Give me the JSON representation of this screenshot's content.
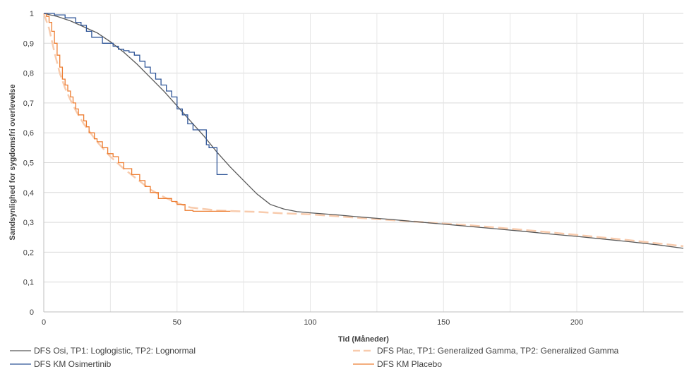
{
  "chart_data": {
    "type": "line",
    "xlabel": "Tid (Måneder)",
    "ylabel": "Sandsynlighed for sygdomsfri overlevelse",
    "xlim": [
      0,
      240
    ],
    "ylim": [
      0,
      1
    ],
    "x_ticks": [
      "0",
      "50",
      "100",
      "150",
      "200"
    ],
    "y_ticks": [
      "0",
      "0,1",
      "0,2",
      "0,3",
      "0,4",
      "0,5",
      "0,6",
      "0,7",
      "0,8",
      "0,9",
      "1"
    ],
    "grid": "vertical and horizontal",
    "legend_position": "bottom",
    "series": [
      {
        "name": "DFS Osi, TP1: Loglogistic, TP2: Lognormal",
        "style": "solid",
        "color": "#595959",
        "points": [
          [
            0,
            1
          ],
          [
            5,
            0.99
          ],
          [
            10,
            0.975
          ],
          [
            15,
            0.955
          ],
          [
            20,
            0.935
          ],
          [
            25,
            0.905
          ],
          [
            30,
            0.87
          ],
          [
            35,
            0.83
          ],
          [
            40,
            0.785
          ],
          [
            45,
            0.74
          ],
          [
            50,
            0.69
          ],
          [
            55,
            0.64
          ],
          [
            60,
            0.59
          ],
          [
            65,
            0.535
          ],
          [
            70,
            0.485
          ],
          [
            75,
            0.44
          ],
          [
            80,
            0.395
          ],
          [
            85,
            0.36
          ],
          [
            90,
            0.345
          ],
          [
            95,
            0.336
          ],
          [
            100,
            0.332
          ],
          [
            110,
            0.325
          ],
          [
            120,
            0.317
          ],
          [
            130,
            0.31
          ],
          [
            140,
            0.302
          ],
          [
            150,
            0.294
          ],
          [
            160,
            0.286
          ],
          [
            170,
            0.278
          ],
          [
            180,
            0.27
          ],
          [
            190,
            0.261
          ],
          [
            200,
            0.253
          ],
          [
            210,
            0.244
          ],
          [
            220,
            0.235
          ],
          [
            230,
            0.225
          ],
          [
            240,
            0.213
          ]
        ]
      },
      {
        "name": "DFS Plac, TP1: Generalized Gamma, TP2: Generalized Gamma",
        "style": "dashed",
        "color": "#f8cbad",
        "points": [
          [
            0,
            1
          ],
          [
            2,
            0.95
          ],
          [
            4,
            0.87
          ],
          [
            6,
            0.8
          ],
          [
            8,
            0.75
          ],
          [
            10,
            0.71
          ],
          [
            12,
            0.675
          ],
          [
            15,
            0.63
          ],
          [
            20,
            0.57
          ],
          [
            25,
            0.52
          ],
          [
            30,
            0.48
          ],
          [
            35,
            0.445
          ],
          [
            40,
            0.41
          ],
          [
            45,
            0.385
          ],
          [
            50,
            0.365
          ],
          [
            55,
            0.35
          ],
          [
            60,
            0.345
          ],
          [
            65,
            0.34
          ],
          [
            70,
            0.338
          ],
          [
            80,
            0.335
          ],
          [
            90,
            0.33
          ],
          [
            100,
            0.327
          ],
          [
            120,
            0.314
          ],
          [
            140,
            0.302
          ],
          [
            160,
            0.29
          ],
          [
            180,
            0.275
          ],
          [
            200,
            0.258
          ],
          [
            220,
            0.24
          ],
          [
            240,
            0.22
          ]
        ]
      },
      {
        "name": "DFS KM Osimertinib",
        "style": "step",
        "color": "#2f5597",
        "points": [
          [
            0,
            1
          ],
          [
            4,
            1
          ],
          [
            4,
            0.995
          ],
          [
            8,
            0.995
          ],
          [
            8,
            0.985
          ],
          [
            12,
            0.985
          ],
          [
            12,
            0.97
          ],
          [
            14,
            0.97
          ],
          [
            14,
            0.96
          ],
          [
            16,
            0.96
          ],
          [
            16,
            0.94
          ],
          [
            18,
            0.94
          ],
          [
            18,
            0.92
          ],
          [
            22,
            0.92
          ],
          [
            22,
            0.9
          ],
          [
            26,
            0.9
          ],
          [
            26,
            0.89
          ],
          [
            28,
            0.89
          ],
          [
            28,
            0.88
          ],
          [
            30,
            0.88
          ],
          [
            30,
            0.875
          ],
          [
            32,
            0.875
          ],
          [
            32,
            0.87
          ],
          [
            34,
            0.87
          ],
          [
            34,
            0.86
          ],
          [
            36,
            0.86
          ],
          [
            36,
            0.84
          ],
          [
            38,
            0.84
          ],
          [
            38,
            0.82
          ],
          [
            40,
            0.82
          ],
          [
            40,
            0.8
          ],
          [
            42,
            0.8
          ],
          [
            42,
            0.78
          ],
          [
            44,
            0.78
          ],
          [
            44,
            0.76
          ],
          [
            46,
            0.76
          ],
          [
            46,
            0.74
          ],
          [
            48,
            0.74
          ],
          [
            48,
            0.72
          ],
          [
            50,
            0.72
          ],
          [
            50,
            0.68
          ],
          [
            52,
            0.68
          ],
          [
            52,
            0.66
          ],
          [
            54,
            0.66
          ],
          [
            54,
            0.63
          ],
          [
            56,
            0.63
          ],
          [
            56,
            0.61
          ],
          [
            61,
            0.61
          ],
          [
            61,
            0.56
          ],
          [
            62,
            0.56
          ],
          [
            62,
            0.55
          ],
          [
            65,
            0.55
          ],
          [
            65,
            0.46
          ],
          [
            69,
            0.46
          ]
        ]
      },
      {
        "name": "DFS KM Placebo",
        "style": "step",
        "color": "#ed7d31",
        "points": [
          [
            0,
            1
          ],
          [
            1,
            1
          ],
          [
            1,
            0.99
          ],
          [
            2,
            0.99
          ],
          [
            2,
            0.97
          ],
          [
            3,
            0.97
          ],
          [
            3,
            0.94
          ],
          [
            4,
            0.94
          ],
          [
            4,
            0.9
          ],
          [
            5,
            0.9
          ],
          [
            5,
            0.86
          ],
          [
            6,
            0.86
          ],
          [
            6,
            0.82
          ],
          [
            7,
            0.82
          ],
          [
            7,
            0.78
          ],
          [
            8,
            0.78
          ],
          [
            8,
            0.76
          ],
          [
            9,
            0.76
          ],
          [
            9,
            0.74
          ],
          [
            10,
            0.74
          ],
          [
            10,
            0.72
          ],
          [
            11,
            0.72
          ],
          [
            11,
            0.7
          ],
          [
            12,
            0.7
          ],
          [
            12,
            0.68
          ],
          [
            13,
            0.68
          ],
          [
            13,
            0.66
          ],
          [
            15,
            0.66
          ],
          [
            15,
            0.64
          ],
          [
            16,
            0.64
          ],
          [
            16,
            0.62
          ],
          [
            17,
            0.62
          ],
          [
            17,
            0.6
          ],
          [
            19,
            0.6
          ],
          [
            19,
            0.58
          ],
          [
            20,
            0.58
          ],
          [
            20,
            0.57
          ],
          [
            22,
            0.57
          ],
          [
            22,
            0.55
          ],
          [
            24,
            0.55
          ],
          [
            24,
            0.53
          ],
          [
            26,
            0.53
          ],
          [
            26,
            0.52
          ],
          [
            28,
            0.52
          ],
          [
            28,
            0.5
          ],
          [
            30,
            0.5
          ],
          [
            30,
            0.48
          ],
          [
            33,
            0.48
          ],
          [
            33,
            0.46
          ],
          [
            36,
            0.46
          ],
          [
            36,
            0.44
          ],
          [
            38,
            0.44
          ],
          [
            38,
            0.42
          ],
          [
            40,
            0.42
          ],
          [
            40,
            0.4
          ],
          [
            43,
            0.4
          ],
          [
            43,
            0.38
          ],
          [
            48,
            0.38
          ],
          [
            48,
            0.37
          ],
          [
            50,
            0.37
          ],
          [
            50,
            0.36
          ],
          [
            53,
            0.36
          ],
          [
            53,
            0.34
          ],
          [
            56,
            0.34
          ],
          [
            56,
            0.337
          ],
          [
            70,
            0.337
          ]
        ]
      }
    ]
  }
}
